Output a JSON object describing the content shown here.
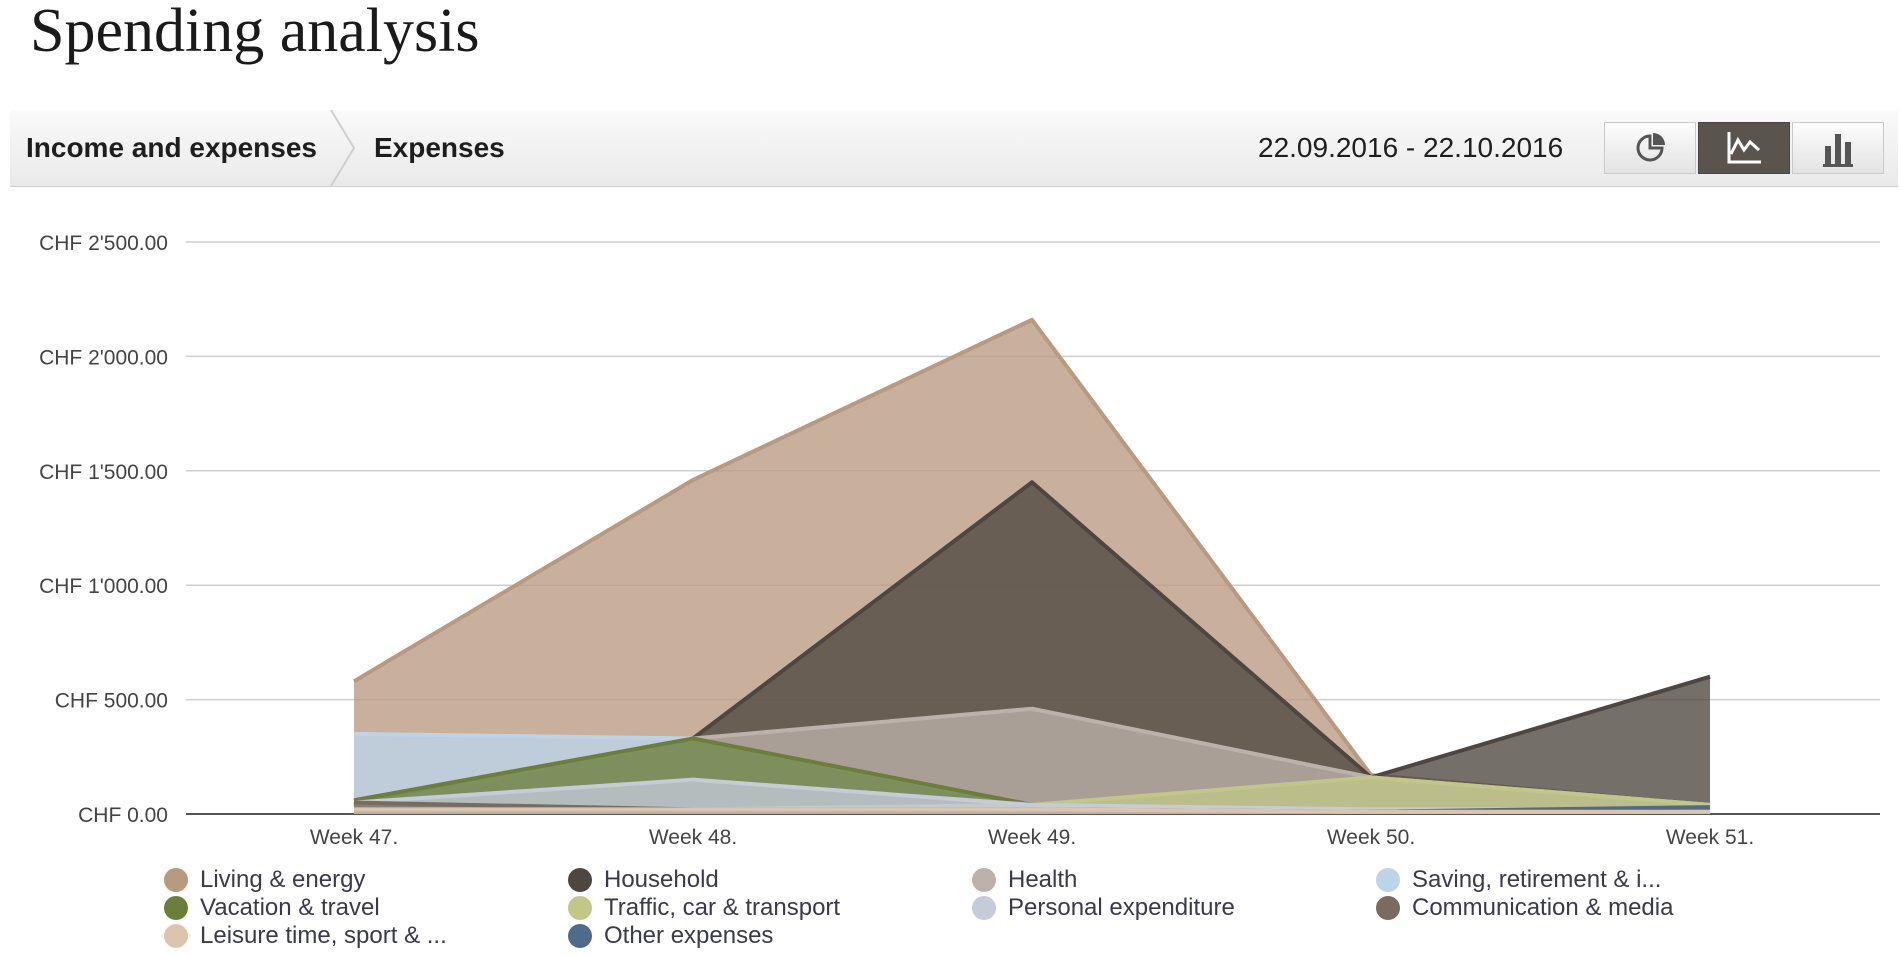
{
  "page": {
    "title": "Spending analysis"
  },
  "toolbar": {
    "crumbs": [
      "Income and expenses",
      "Expenses"
    ],
    "date_range": "22.09.2016 - 22.10.2016",
    "views": [
      {
        "name": "pie",
        "icon": "pie-chart-icon",
        "active": false
      },
      {
        "name": "line",
        "icon": "line-chart-icon",
        "active": true
      },
      {
        "name": "bar",
        "icon": "bar-chart-icon",
        "active": false
      }
    ],
    "active_color": "#5a544e"
  },
  "chart_data": {
    "type": "area",
    "categories": [
      "Week 47.",
      "Week 48.",
      "Week 49.",
      "Week 50.",
      "Week 51."
    ],
    "ylim": [
      0,
      2500
    ],
    "yticks": [
      0,
      500,
      1000,
      1500,
      2000,
      2500
    ],
    "ytick_labels": [
      "CHF 0.00",
      "CHF 500.00",
      "CHF 1'000.00",
      "CHF 1'500.00",
      "CHF 2'000.00",
      "CHF 2'500.00"
    ],
    "grid": true,
    "legend_position": "bottom",
    "series": [
      {
        "name": "Living & energy",
        "color": "#b89a80",
        "values": [
          580,
          1460,
          2160,
          170,
          40
        ]
      },
      {
        "name": "Household",
        "color": "#4e4640",
        "values": [
          40,
          330,
          1450,
          160,
          600
        ]
      },
      {
        "name": "Health",
        "color": "#bcb2ab",
        "values": [
          30,
          330,
          460,
          160,
          40
        ]
      },
      {
        "name": "Saving, retirement & i...",
        "color": "#bcd4ea",
        "values": [
          350,
          330,
          30,
          10,
          10
        ]
      },
      {
        "name": "Vacation & travel",
        "color": "#6b7f3a",
        "values": [
          60,
          330,
          40,
          10,
          10
        ]
      },
      {
        "name": "Traffic, car & transport",
        "color": "#c0c787",
        "values": [
          20,
          20,
          40,
          160,
          40
        ]
      },
      {
        "name": "Personal expenditure",
        "color": "#c4cbd9",
        "values": [
          50,
          150,
          40,
          20,
          20
        ]
      },
      {
        "name": "Communication & media",
        "color": "#7a6b60",
        "values": [
          50,
          20,
          20,
          10,
          10
        ]
      },
      {
        "name": "Leisure time, sport & ...",
        "color": "#dcc5ad",
        "values": [
          20,
          20,
          20,
          10,
          10
        ]
      },
      {
        "name": "Other expenses",
        "color": "#4f6a8a",
        "values": [
          10,
          10,
          10,
          10,
          30
        ]
      }
    ],
    "legend_order": [
      0,
      1,
      2,
      3,
      4,
      5,
      6,
      7,
      8,
      9
    ]
  }
}
